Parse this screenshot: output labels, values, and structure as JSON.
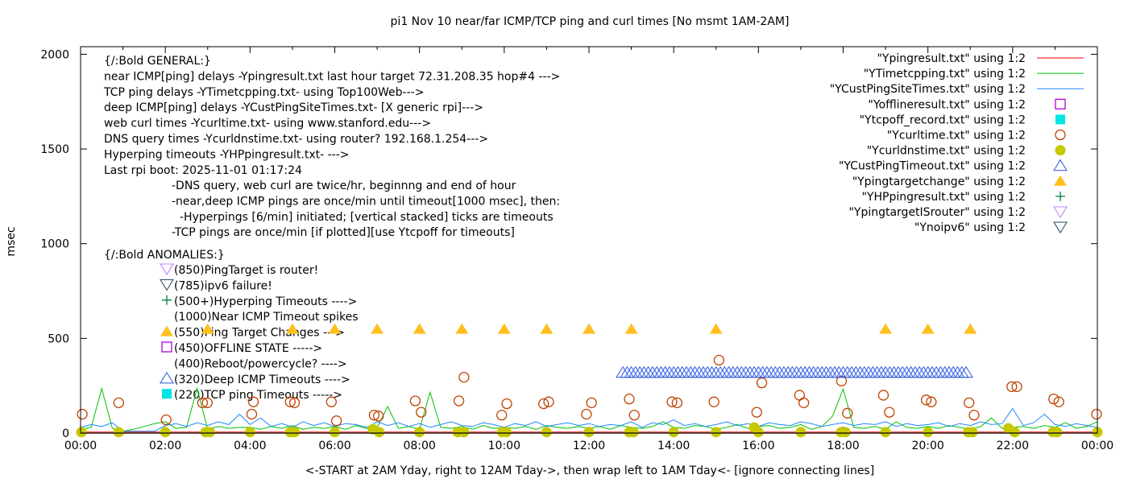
{
  "chart_data": {
    "type": "line",
    "title": "pi1 Nov 10  near/far ICMP/TCP ping and curl times [No msmt 1AM-2AM]",
    "xlabel": "<-START at 2AM Yday, right to 12AM Tday->, then wrap left to 1AM Tday<- [ignore connecting lines]",
    "ylabel": "msec",
    "xlim": [
      0,
      24
    ],
    "ylim": [
      0,
      2040
    ],
    "x_unit": "hours",
    "x_tick_labels": [
      "00:00",
      "02:00",
      "04:00",
      "06:00",
      "08:00",
      "10:00",
      "12:00",
      "14:00",
      "16:00",
      "18:00",
      "20:00",
      "22:00",
      "00:00"
    ],
    "x_tick_values": [
      0,
      2,
      4,
      6,
      8,
      10,
      12,
      14,
      16,
      18,
      20,
      22,
      24
    ],
    "y_tick_labels": [
      "0",
      "500",
      "1000",
      "1500",
      "2000"
    ],
    "y_tick_values": [
      0,
      500,
      1000,
      1500,
      2000
    ],
    "legend_position": "top-right",
    "series": [
      {
        "name": "\"Ypingresult.txt\" using 1:2",
        "style": "line",
        "color": "#ff0000",
        "x_step": 1,
        "values": [
          5,
          5,
          5,
          5,
          5,
          5,
          5,
          5,
          5,
          5,
          5,
          5,
          5,
          5,
          5,
          5,
          5,
          5,
          5,
          5,
          5,
          5,
          5,
          5,
          5
        ]
      },
      {
        "name": "\"YTimetcpping.txt\" using 1:2",
        "style": "line",
        "color": "#00c000",
        "x_step": 0.25,
        "values": [
          20,
          30,
          235,
          25,
          10,
          20,
          35,
          50,
          60,
          25,
          30,
          235,
          20,
          35,
          25,
          30,
          30,
          20,
          35,
          25,
          40,
          20,
          30,
          25,
          35,
          20,
          40,
          25,
          30,
          140,
          25,
          35,
          20,
          215,
          30,
          25,
          35,
          20,
          40,
          25,
          30,
          25,
          35,
          20,
          40,
          30,
          25,
          35,
          25,
          35,
          20,
          40,
          30,
          25,
          35,
          60,
          30,
          25,
          40,
          35,
          20,
          30,
          45,
          25,
          35,
          40,
          25,
          30,
          45,
          20,
          35,
          90,
          233,
          30,
          25,
          35,
          20,
          60,
          30,
          25,
          35,
          25,
          40,
          30,
          20,
          35,
          80,
          25,
          30,
          35,
          25,
          40,
          30,
          55,
          25,
          35,
          60
        ]
      },
      {
        "name": "\"YCustPingSiteTimes.txt\" using 1:2",
        "style": "line",
        "color": "#1e88ff",
        "x_step": 0.25,
        "values": [
          30,
          45,
          35,
          55,
          10,
          10,
          10,
          10,
          40,
          50,
          35,
          55,
          40,
          60,
          45,
          100,
          45,
          80,
          35,
          50,
          30,
          60,
          40,
          55,
          35,
          50,
          45,
          30,
          60,
          40,
          55,
          35,
          50,
          30,
          45,
          60,
          40,
          35,
          55,
          45,
          30,
          50,
          40,
          60,
          35,
          45,
          55,
          40,
          50,
          35,
          45,
          40,
          60,
          30,
          55,
          45,
          70,
          40,
          50,
          35,
          45,
          60,
          40,
          50,
          35,
          55,
          45,
          40,
          60,
          50,
          35,
          45,
          55,
          40,
          50,
          45,
          60,
          35,
          50,
          40,
          45,
          55,
          35,
          50,
          40,
          60,
          45,
          50,
          130,
          40,
          55,
          100,
          45,
          35,
          50,
          40,
          30
        ]
      },
      {
        "name": "\"Yofflineresult.txt\" using 1:2",
        "style": "open-square",
        "color": "#b000e0",
        "points": []
      },
      {
        "name": "\"Ytcpoff_record.txt\" using 1:2",
        "style": "filled-square",
        "color": "#00e5e5",
        "points": []
      },
      {
        "name": "\"Ycurltime.txt\" using 1:2",
        "style": "open-circle",
        "color": "#c04000",
        "points": [
          [
            0.04,
            100
          ],
          [
            0.9,
            160
          ],
          [
            2.02,
            70
          ],
          [
            2.88,
            160
          ],
          [
            2.99,
            160
          ],
          [
            4.04,
            100
          ],
          [
            4.08,
            165
          ],
          [
            4.95,
            165
          ],
          [
            5.05,
            160
          ],
          [
            5.92,
            165
          ],
          [
            6.04,
            65
          ],
          [
            6.93,
            95
          ],
          [
            7.03,
            90
          ],
          [
            7.9,
            170
          ],
          [
            8.04,
            110
          ],
          [
            8.93,
            170
          ],
          [
            9.05,
            295
          ],
          [
            9.94,
            95
          ],
          [
            10.06,
            155
          ],
          [
            10.93,
            155
          ],
          [
            11.05,
            165
          ],
          [
            11.94,
            100
          ],
          [
            12.06,
            160
          ],
          [
            12.95,
            180
          ],
          [
            13.07,
            95
          ],
          [
            13.96,
            165
          ],
          [
            14.08,
            160
          ],
          [
            14.95,
            165
          ],
          [
            15.07,
            385
          ],
          [
            15.96,
            110
          ],
          [
            16.08,
            265
          ],
          [
            16.97,
            200
          ],
          [
            17.07,
            160
          ],
          [
            17.96,
            275
          ],
          [
            18.1,
            105
          ],
          [
            18.95,
            200
          ],
          [
            19.09,
            110
          ],
          [
            19.96,
            175
          ],
          [
            20.08,
            165
          ],
          [
            20.97,
            160
          ],
          [
            21.09,
            95
          ],
          [
            21.98,
            245
          ],
          [
            22.1,
            245
          ],
          [
            22.97,
            180
          ],
          [
            23.09,
            165
          ],
          [
            23.98,
            100
          ]
        ]
      },
      {
        "name": "\"Ycurldnstime.txt\" using 1:2",
        "style": "filled-circle",
        "color": "#c8c800",
        "points": [
          [
            0.02,
            5
          ],
          [
            0.9,
            5
          ],
          [
            2.0,
            5
          ],
          [
            2.95,
            5
          ],
          [
            3.05,
            5
          ],
          [
            4.0,
            5
          ],
          [
            4.95,
            5
          ],
          [
            5.05,
            5
          ],
          [
            6.0,
            5
          ],
          [
            6.9,
            20
          ],
          [
            7.05,
            5
          ],
          [
            8.0,
            5
          ],
          [
            8.9,
            5
          ],
          [
            9.05,
            5
          ],
          [
            9.95,
            5
          ],
          [
            10.05,
            5
          ],
          [
            11.0,
            5
          ],
          [
            12.0,
            5
          ],
          [
            12.95,
            5
          ],
          [
            13.05,
            5
          ],
          [
            14.0,
            5
          ],
          [
            15.0,
            5
          ],
          [
            15.9,
            30
          ],
          [
            16.0,
            5
          ],
          [
            17.0,
            5
          ],
          [
            17.95,
            5
          ],
          [
            18.05,
            5
          ],
          [
            19.0,
            5
          ],
          [
            20.0,
            5
          ],
          [
            20.95,
            5
          ],
          [
            21.05,
            5
          ],
          [
            21.9,
            25
          ],
          [
            22.05,
            5
          ],
          [
            22.95,
            5
          ],
          [
            23.05,
            5
          ],
          [
            24.0,
            5
          ]
        ]
      },
      {
        "name": "\"YCustPingTimeout.txt\" using 1:2",
        "style": "open-triangle",
        "color": "#4169e1",
        "y": 320,
        "x": [
          12.8,
          12.9,
          13.0,
          13.1,
          13.2,
          13.3,
          13.4,
          13.5,
          13.6,
          13.7,
          13.8,
          13.9,
          14.0,
          14.1,
          14.2,
          14.3,
          14.4,
          14.5,
          14.6,
          14.7,
          14.8,
          14.9,
          15.0,
          15.1,
          15.2,
          15.3,
          15.4,
          15.5,
          15.6,
          15.7,
          15.8,
          15.9,
          16.0,
          16.1,
          16.2,
          16.3,
          16.4,
          16.5,
          16.6,
          16.7,
          16.8,
          16.9,
          17.0,
          17.1,
          17.2,
          17.3,
          17.4,
          17.5,
          17.6,
          17.7,
          17.8,
          17.9,
          18.0,
          18.1,
          18.2,
          18.3,
          18.4,
          18.5,
          18.6,
          18.7,
          18.8,
          18.9,
          19.0,
          19.1,
          19.2,
          19.3,
          19.4,
          19.5,
          19.6,
          19.7,
          19.8,
          19.9,
          20.0,
          20.1,
          20.2,
          20.3,
          20.4,
          20.5,
          20.6,
          20.7,
          20.8,
          20.9
        ]
      },
      {
        "name": "\"Ypingtargetchange\" using 1:2",
        "style": "filled-triangle",
        "color": "#ffbf1f",
        "y": 550,
        "x": [
          3,
          5,
          6,
          7,
          8,
          9,
          10,
          11,
          12,
          13,
          15,
          19,
          20,
          21
        ]
      },
      {
        "name": "\"YHPpingresult.txt\" using 1:2",
        "style": "plus",
        "color": "#008040",
        "points": []
      },
      {
        "name": "\"YpingtargetISrouter\" using 1:2",
        "style": "open-down-triangle",
        "color": "#c080ff",
        "points": []
      },
      {
        "name": "\"Ynoipv6\" using 1:2",
        "style": "open-down-triangle",
        "color": "#305870",
        "points": []
      }
    ],
    "annotations": {
      "general": [
        "{/:Bold GENERAL:}",
        "near ICMP[ping] delays -Ypingresult.txt last hour target 72.31.208.35 hop#4 --->",
        "TCP ping delays -YTimetcpping.txt- using Top100Web--->",
        "deep ICMP[ping] delays -YCustPingSiteTimes.txt- [X generic rpi]--->",
        "web curl times -Ycurltime.txt- using www.stanford.edu--->",
        "DNS query times -Ycurldnstime.txt- using router? 192.168.1.254--->",
        "Hyperping timeouts -YHPpingresult.txt- --->",
        "Last rpi boot: 2025-11-01 01:17:24"
      ],
      "notes": [
        "-DNS query, web curl are twice/hr, beginnng and end of hour",
        "-near,deep ICMP pings are once/min until timeout[1000 msec], then:",
        "-Hyperpings [6/min] initiated; [vertical stacked] ticks are timeouts",
        "-TCP pings are once/min [if plotted][use Ytcpoff for timeouts]"
      ],
      "anomalies_title": "{/:Bold ANOMALIES:}",
      "anomalies": [
        {
          "text": "(850)PingTarget is router!",
          "marker": "open-down-triangle",
          "color": "#c080ff"
        },
        {
          "text": "(785)ipv6 failure!",
          "marker": "open-down-triangle",
          "color": "#305870"
        },
        {
          "text": "(500+)Hyperping Timeouts ---->",
          "marker": "plus",
          "color": "#008040"
        },
        {
          "text": "(1000)Near ICMP Timeout spikes",
          "marker": "none",
          "color": ""
        },
        {
          "text": "(550)Ping Target Changes --->",
          "marker": "filled-triangle",
          "color": "#ffbf1f"
        },
        {
          "text": "(450)OFFLINE STATE ----->",
          "marker": "open-square",
          "color": "#b000e0"
        },
        {
          "text": "(400)Reboot/powercycle? ---->",
          "marker": "none",
          "color": ""
        },
        {
          "text": "(320)Deep ICMP Timeouts ---->",
          "marker": "open-triangle",
          "color": "#4169e1"
        },
        {
          "text": "(220)TCP ping Timeouts ----->",
          "marker": "filled-square",
          "color": "#00e5e5"
        }
      ]
    }
  }
}
